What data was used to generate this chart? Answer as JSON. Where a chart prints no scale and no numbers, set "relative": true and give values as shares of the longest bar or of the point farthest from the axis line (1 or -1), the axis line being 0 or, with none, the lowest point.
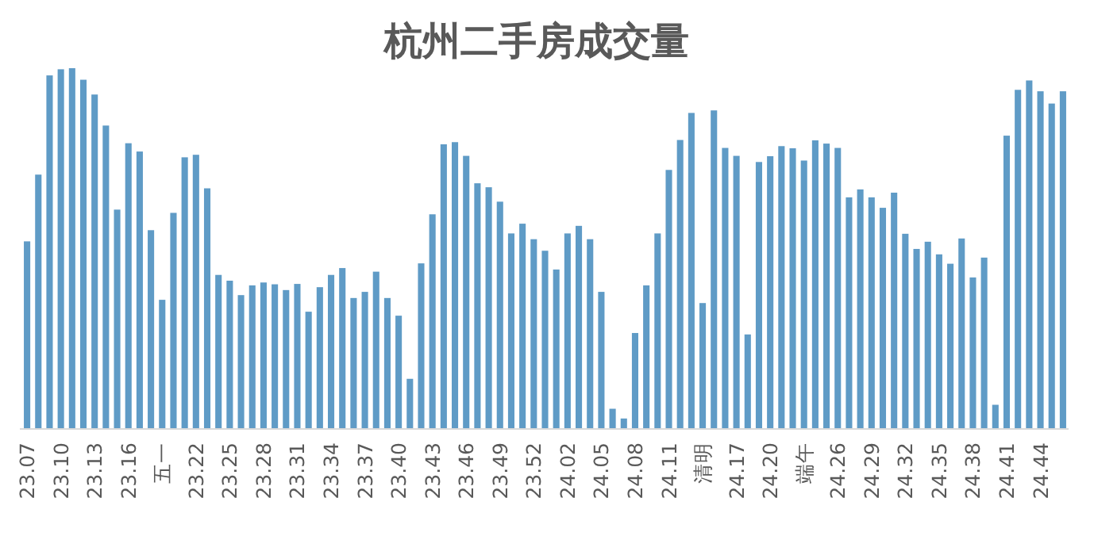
{
  "chart_data": {
    "type": "bar",
    "title": "杭州二手房成交量",
    "relative": true,
    "color": "#5f9bc6",
    "categories": [
      "23.07",
      null,
      null,
      "23.10",
      null,
      null,
      "23.13",
      null,
      null,
      "23.16",
      null,
      null,
      "五一",
      null,
      null,
      "23.22",
      null,
      null,
      "23.25",
      null,
      null,
      "23.28",
      null,
      null,
      "23.31",
      null,
      null,
      "23.34",
      null,
      null,
      "23.37",
      null,
      null,
      "23.40",
      null,
      null,
      "23.43",
      null,
      null,
      "23.46",
      null,
      null,
      "23.49",
      null,
      null,
      "23.52",
      null,
      null,
      "24.02",
      null,
      null,
      "24.05",
      null,
      null,
      "24.08",
      null,
      null,
      "24.11",
      null,
      null,
      "清明",
      null,
      null,
      "24.17",
      null,
      null,
      "24.20",
      null,
      null,
      "端午",
      null,
      null,
      "24.26",
      null,
      null,
      "24.29",
      null,
      null,
      "24.32",
      null,
      null,
      "24.35",
      null,
      null,
      "24.38",
      null,
      null,
      "24.41",
      null,
      null,
      "24.44",
      null,
      null
    ],
    "values": [
      0.52,
      0.705,
      0.98,
      0.997,
      1,
      0.968,
      0.927,
      0.841,
      0.608,
      0.792,
      0.769,
      0.551,
      0.358,
      0.599,
      0.753,
      0.76,
      0.667,
      0.427,
      0.411,
      0.371,
      0.398,
      0.406,
      0.401,
      0.385,
      0.402,
      0.325,
      0.393,
      0.427,
      0.446,
      0.363,
      0.38,
      0.436,
      0.363,
      0.314,
      0.139,
      0.459,
      0.595,
      0.789,
      0.795,
      0.757,
      0.681,
      0.67,
      0.63,
      0.542,
      0.569,
      0.526,
      0.494,
      0.442,
      0.542,
      0.563,
      0.526,
      0.38,
      0.056,
      0.029,
      0.266,
      0.398,
      0.542,
      0.718,
      0.801,
      0.876,
      0.349,
      0.883,
      0.779,
      0.757,
      0.262,
      0.74,
      0.756,
      0.784,
      0.778,
      0.744,
      0.8,
      0.791,
      0.779,
      0.642,
      0.664,
      0.642,
      0.613,
      0.655,
      0.541,
      0.499,
      0.519,
      0.484,
      0.458,
      0.528,
      0.42,
      0.475,
      0.067,
      0.813,
      0.94,
      0.966,
      0.936,
      0.902,
      0.936
    ]
  }
}
